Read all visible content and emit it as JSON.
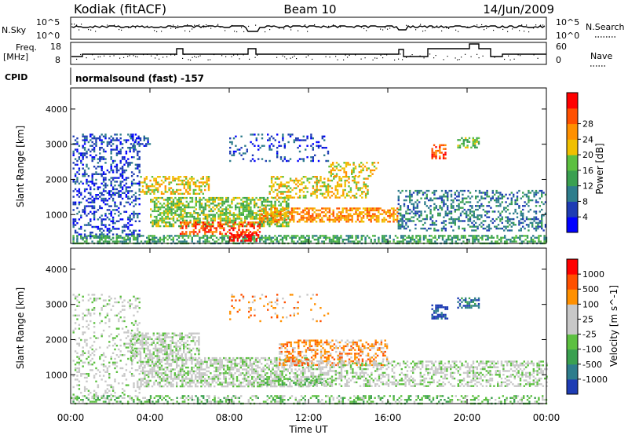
{
  "header": {
    "station": "Kodiak (fitACF)",
    "beam": "Beam 10",
    "date": "14/Jun/2009"
  },
  "panels": {
    "sky_label": "N.Sky",
    "sky_ticks": [
      "10^5",
      "10^0"
    ],
    "sky_right_ticks": [
      "10^5",
      "10^0"
    ],
    "search_label": "N.Search",
    "freq_label_1": "Freq.",
    "freq_label_2": "[MHz]",
    "freq_ticks": [
      "18",
      "8"
    ],
    "nave_ticks": [
      "60",
      "0"
    ],
    "nave_label": "Nave",
    "cpid_label": "CPID",
    "cpid_value": "normalsound (fast) -157"
  },
  "chart_data": [
    {
      "type": "heatmap",
      "name": "power",
      "xlabel": "",
      "ylabel": "Slant Range [km]",
      "x_ticks": [
        "00:00",
        "04:00",
        "08:00",
        "12:00",
        "16:00",
        "20:00",
        "00:00"
      ],
      "xlim_hours": [
        0,
        24
      ],
      "y_ticks": [
        1000,
        2000,
        3000,
        4000
      ],
      "ylim": [
        180,
        4600
      ],
      "colorbar_label": "Power [dB]",
      "colorbar_ticks": [
        "4",
        "8",
        "12",
        "16",
        "20",
        "24",
        "28"
      ],
      "colorbar_colors": [
        "#0000ff",
        "#1e3cb4",
        "#2e7d8c",
        "#3aa050",
        "#5cc040",
        "#f0c000",
        "#ff9000",
        "#ff5000",
        "#ff0000"
      ],
      "regions": [
        {
          "t0": 0.1,
          "t1": 3.5,
          "r0": 300,
          "r1": 3300,
          "level": 1,
          "density": 0.35
        },
        {
          "t0": 0.0,
          "t1": 24.0,
          "r0": 200,
          "r1": 420,
          "level": 3,
          "density": 0.55
        },
        {
          "t0": 3.5,
          "t1": 7.0,
          "r0": 1600,
          "r1": 2100,
          "level": 5,
          "density": 0.5
        },
        {
          "t0": 4.0,
          "t1": 11.0,
          "r0": 650,
          "r1": 1500,
          "level": 4,
          "density": 0.6
        },
        {
          "t0": 5.5,
          "t1": 9.5,
          "r0": 450,
          "r1": 800,
          "level": 7,
          "density": 0.5
        },
        {
          "t0": 8.0,
          "t1": 9.5,
          "r0": 280,
          "r1": 500,
          "level": 8,
          "density": 0.6
        },
        {
          "t0": 9.5,
          "t1": 16.5,
          "r0": 800,
          "r1": 1200,
          "level": 6,
          "density": 0.6
        },
        {
          "t0": 10.0,
          "t1": 15.0,
          "r0": 1500,
          "r1": 2100,
          "level": 5,
          "density": 0.45
        },
        {
          "t0": 13.0,
          "t1": 15.5,
          "r0": 2100,
          "r1": 2500,
          "level": 5,
          "density": 0.4
        },
        {
          "t0": 16.5,
          "t1": 24.0,
          "r0": 550,
          "r1": 1700,
          "level": 2,
          "density": 0.35
        },
        {
          "t0": 18.2,
          "t1": 18.9,
          "r0": 2600,
          "r1": 3000,
          "level": 7,
          "density": 0.55
        },
        {
          "t0": 19.5,
          "t1": 20.6,
          "r0": 2900,
          "r1": 3200,
          "level": 4,
          "density": 0.55
        },
        {
          "t0": 3.0,
          "t1": 4.0,
          "r0": 2900,
          "r1": 3300,
          "level": 1,
          "density": 0.4
        },
        {
          "t0": 8.0,
          "t1": 13.0,
          "r0": 2500,
          "r1": 3300,
          "level": 1,
          "density": 0.18
        }
      ]
    },
    {
      "type": "heatmap",
      "name": "velocity",
      "xlabel": "Time UT",
      "ylabel": "Slant Range [km]",
      "x_ticks": [
        "00:00",
        "04:00",
        "08:00",
        "12:00",
        "16:00",
        "20:00",
        "00:00"
      ],
      "xlim_hours": [
        0,
        24
      ],
      "y_ticks": [
        1000,
        2000,
        3000,
        4000
      ],
      "ylim": [
        180,
        4600
      ],
      "colorbar_label": "Velocity [m s^-1]",
      "colorbar_ticks": [
        "1000",
        "500",
        "100",
        "25",
        "-25",
        "-100",
        "-500",
        "-1000"
      ],
      "colorbar_colors": [
        "#1e3cb4",
        "#2e7d8c",
        "#3aa050",
        "#5cc040",
        "#c8c8c8",
        "#c8c8c8",
        "#ff9000",
        "#ff5000",
        "#ff0000"
      ],
      "regions": [
        {
          "t0": 0.1,
          "t1": 3.5,
          "r0": 300,
          "r1": 3300,
          "level": 4,
          "density": 0.2
        },
        {
          "t0": 0.0,
          "t1": 24.0,
          "r0": 200,
          "r1": 420,
          "level": 3,
          "density": 0.35
        },
        {
          "t0": 3.5,
          "t1": 12.0,
          "r0": 650,
          "r1": 1500,
          "level": 4,
          "density": 0.6
        },
        {
          "t0": 3.0,
          "t1": 6.5,
          "r0": 1400,
          "r1": 2200,
          "level": 4,
          "density": 0.55
        },
        {
          "t0": 9.5,
          "t1": 13.0,
          "r0": 700,
          "r1": 900,
          "level": 3,
          "density": 0.55
        },
        {
          "t0": 10.5,
          "t1": 16.0,
          "r0": 1300,
          "r1": 2000,
          "level": 6,
          "density": 0.45
        },
        {
          "t0": 12.0,
          "t1": 24.0,
          "r0": 700,
          "r1": 1400,
          "level": 4,
          "density": 0.45
        },
        {
          "t0": 18.2,
          "t1": 19.0,
          "r0": 2600,
          "r1": 3000,
          "level": 0,
          "density": 0.6
        },
        {
          "t0": 19.5,
          "t1": 20.6,
          "r0": 2900,
          "r1": 3200,
          "level": 1,
          "density": 0.55
        },
        {
          "t0": 8.0,
          "t1": 13.0,
          "r0": 2500,
          "r1": 3300,
          "level": 6,
          "density": 0.12
        }
      ]
    }
  ]
}
